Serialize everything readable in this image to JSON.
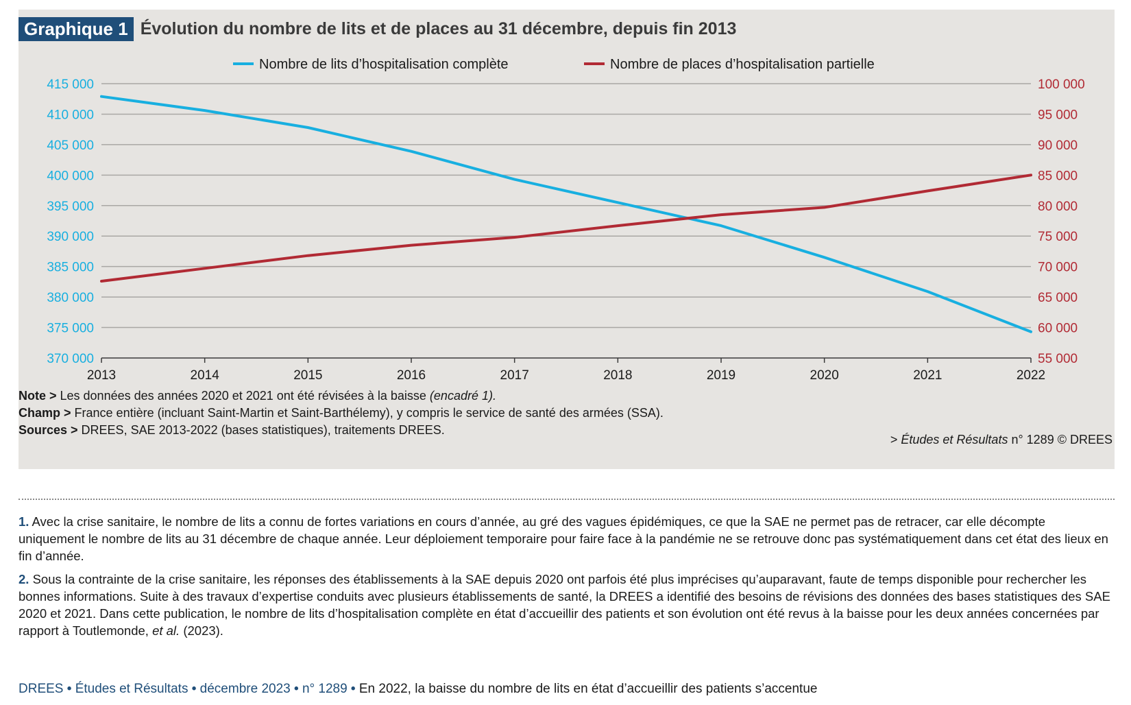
{
  "figure": {
    "badge": "Graphique 1",
    "title": "Évolution du nombre de lits et de places au 31 décembre, depuis fin 2013"
  },
  "colors": {
    "lits": "#18afe0",
    "places": "#b12a34",
    "badge_bg": "#1f4e79",
    "panel_bg": "#e6e4e1"
  },
  "chart_data": {
    "type": "line",
    "x": [
      "2013",
      "2014",
      "2015",
      "2016",
      "2017",
      "2018",
      "2019",
      "2020",
      "2021",
      "2022"
    ],
    "legend_position": "top-center",
    "grid": true,
    "series": [
      {
        "name": "Nombre de lits d’hospitalisation complète",
        "axis": "left",
        "values": [
          412900,
          410600,
          407800,
          403900,
          399300,
          395500,
          391700,
          386500,
          380900,
          374300
        ]
      },
      {
        "name": "Nombre de places d’hospitalisation partielle",
        "axis": "right",
        "values": [
          67600,
          69700,
          71800,
          73500,
          74800,
          76700,
          78500,
          79700,
          82400,
          85000
        ]
      }
    ],
    "y_left": {
      "range": [
        370000,
        415000
      ],
      "ticks": [
        "415 000",
        "410 000",
        "405 000",
        "400 000",
        "395 000",
        "390 000",
        "385 000",
        "380 000",
        "375 000",
        "370 000"
      ]
    },
    "y_right": {
      "range": [
        55000,
        100000
      ],
      "ticks": [
        "100 000",
        "95 000",
        "90 000",
        "85 000",
        "80 000",
        "75 000",
        "70 000",
        "65 000",
        "60 000",
        "55 000"
      ]
    }
  },
  "notes": {
    "note_label": "Note >",
    "note_text": " Les données des années 2020 et 2021 ont été révisées à la baisse ",
    "note_italic": "(encadré 1).",
    "champ_label": "Champ >",
    "champ_text": " France entière (incluant Saint-Martin et Saint-Barthélemy), y compris le service de santé des armées (SSA).",
    "sources_label": "Sources >",
    "sources_text": " DREES, SAE 2013-2022 (bases statistiques), traitements DREES.",
    "credit_prefix": "> ",
    "credit_italic": "Études et Résultats",
    "credit_suffix": " n° 1289 © DREES"
  },
  "footnotes": [
    {
      "num": "1.",
      "text": " Avec la crise sanitaire, le nombre de lits a connu de fortes variations en cours d’année, au gré des vagues épidémiques, ce que la SAE ne permet pas de retracer, car elle décompte uniquement le nombre de lits au 31 décembre de chaque année. Leur déploiement temporaire pour faire face à la pandémie ne se retrouve donc pas systématiquement dans cet état des lieux en fin d’année."
    },
    {
      "num": "2.",
      "text": " Sous la contrainte de la crise sanitaire, les réponses des établissements à la SAE depuis 2020 ont parfois été plus imprécises qu’auparavant, faute de temps disponible pour rechercher les bonnes informations. Suite à des travaux d’expertise conduits avec plusieurs établissements de santé, la DREES a identifié des besoins de révisions des données des bases statistiques des SAE 2020 et 2021. Dans cette publication, le nombre de lits d’hospitalisation complète en état d’accueillir des patients et son évolution ont été revus à la baisse pour les deux années concernées par rapport à Toutlemonde, ",
      "italic": "et al.",
      "tail": " (2023)."
    }
  ],
  "footer": {
    "org": "DREES",
    "series": "Études et Résultats",
    "date": "décembre 2023",
    "number": "n° 1289",
    "headline": "En 2022, la baisse du nombre de lits en état d’accueillir des patients s’accentue",
    "separator": " • "
  }
}
